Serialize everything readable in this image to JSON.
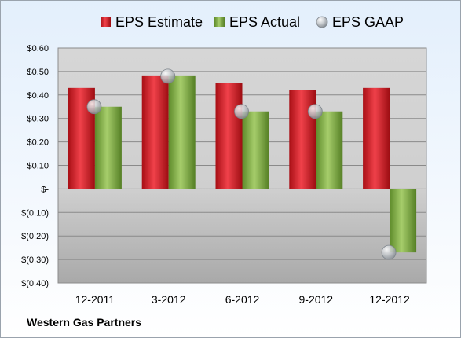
{
  "chart_data": {
    "type": "bar",
    "categories": [
      "12-2011",
      "3-2012",
      "6-2012",
      "9-2012",
      "12-2012"
    ],
    "series": [
      {
        "name": "EPS Estimate",
        "kind": "bar",
        "color": "#c8161d",
        "values": [
          0.43,
          0.48,
          0.45,
          0.42,
          0.43
        ]
      },
      {
        "name": "EPS Actual",
        "kind": "bar",
        "color": "#76a33a",
        "values": [
          0.35,
          0.48,
          0.33,
          0.33,
          -0.27
        ]
      },
      {
        "name": "EPS GAAP",
        "kind": "marker",
        "color": "#b9bec4",
        "values": [
          0.35,
          0.48,
          0.33,
          0.33,
          -0.27
        ]
      }
    ],
    "yticks": [
      0.6,
      0.5,
      0.4,
      0.3,
      0.2,
      0.1,
      0,
      -0.1,
      -0.2,
      -0.3,
      -0.4
    ],
    "ytick_labels": [
      "$0.60",
      "$0.50",
      "$0.40",
      "$0.30",
      "$0.20",
      "$0.10",
      "$-",
      "$(0.10)",
      "$(0.20)",
      "$(0.30)",
      "$(0.40)"
    ],
    "ylim": [
      -0.4,
      0.6
    ],
    "grid": true,
    "legend_position": "top"
  },
  "footer": {
    "company": "Western Gas Partners"
  }
}
